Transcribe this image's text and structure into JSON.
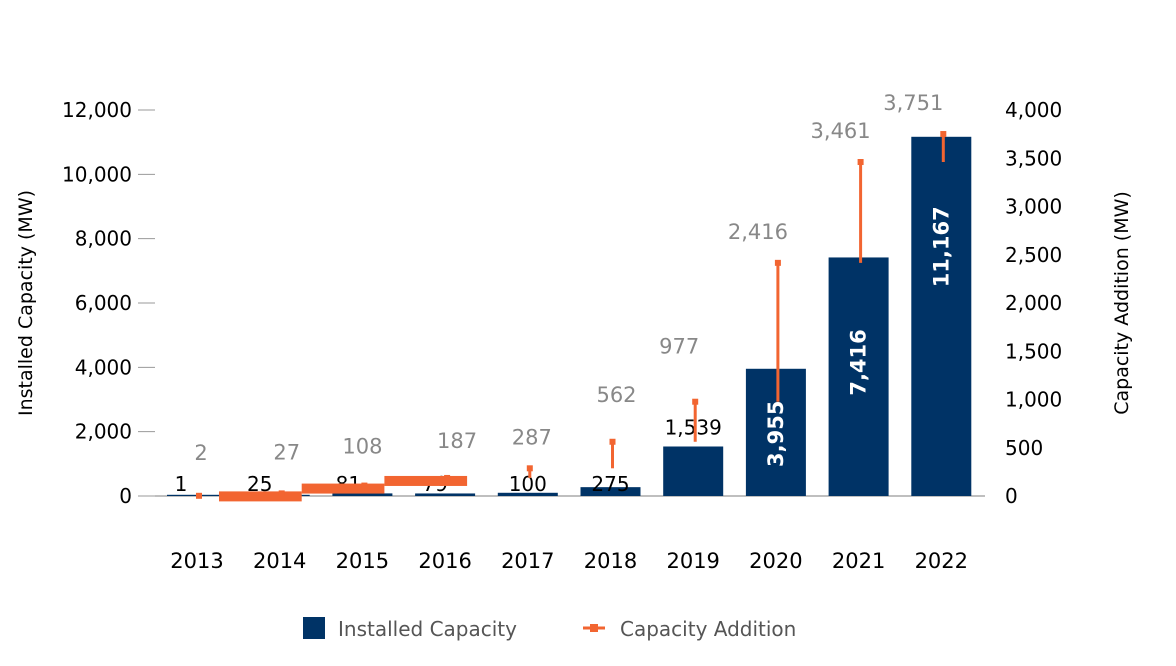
{
  "chart_data": {
    "type": "bar",
    "title": "",
    "categories": [
      "2013",
      "2014",
      "2015",
      "2016",
      "2017",
      "2018",
      "2019",
      "2020",
      "2021",
      "2022"
    ],
    "series": [
      {
        "name": "Installed Capacity",
        "axis": "left",
        "kind": "bar",
        "color": "#003366",
        "values": [
          1,
          25,
          81,
          79,
          100,
          275,
          1539,
          3955,
          7416,
          11167
        ],
        "labels": [
          "1",
          "25",
          "81",
          "79",
          "100",
          "275",
          "1,539",
          "3,955",
          "7,416",
          "11,167"
        ]
      },
      {
        "name": "Capacity Addition",
        "axis": "right",
        "kind": "line",
        "color": "#f26531",
        "values": [
          2,
          27,
          108,
          187,
          287,
          562,
          977,
          2416,
          3461,
          3751
        ],
        "labels": [
          "2",
          "27",
          "108",
          "187",
          "287",
          "562",
          "977",
          "2,416",
          "3,461",
          "3,751"
        ]
      }
    ],
    "ylabel": "Installed Capacity (MW)",
    "y2label": "Capacity Addition (MW)",
    "ylim": [
      0,
      12000
    ],
    "y2lim": [
      0,
      4000
    ],
    "yticks": [
      "0",
      "2,000",
      "4,000",
      "6,000",
      "8,000",
      "10,000",
      "12,000"
    ],
    "y2ticks": [
      "0",
      "500",
      "1,000",
      "1,500",
      "2,000",
      "2,500",
      "3,000",
      "3,500",
      "4,000"
    ],
    "grid": false,
    "legend": "bottom"
  }
}
